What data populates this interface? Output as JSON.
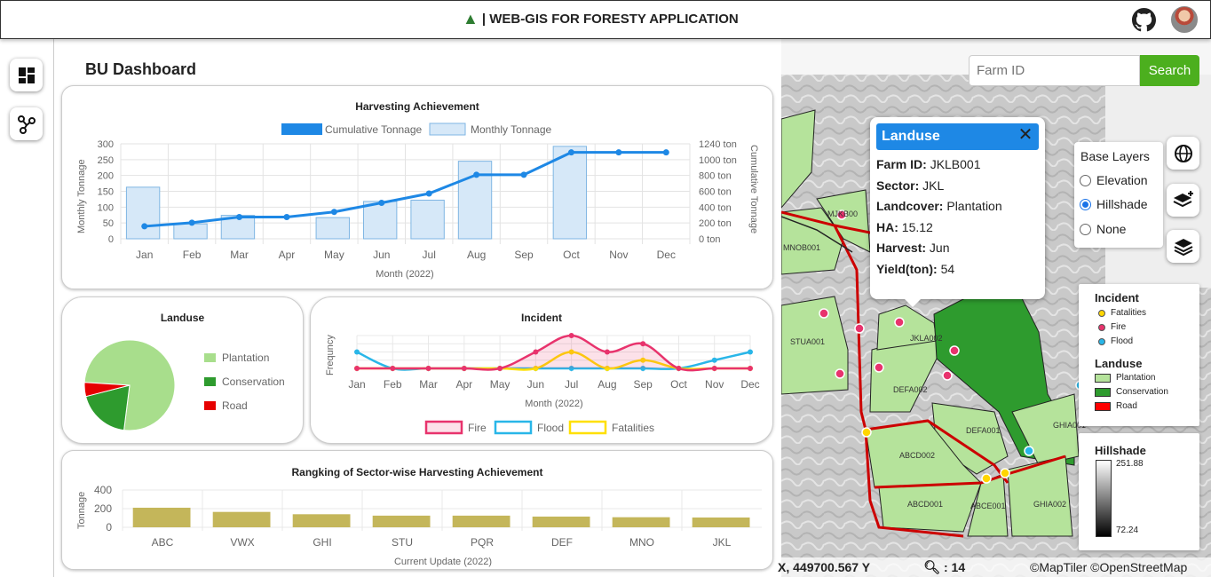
{
  "header": {
    "title": "| WEB-GIS FOR FORESTY APPLICATION"
  },
  "dashboard": {
    "title": "BU Dashboard",
    "harvest": {
      "title": "Harvesting Achievement",
      "legend": [
        "Cumulative Tonnage",
        "Monthly Tonnage"
      ],
      "ylabel_left": "Monthly Tonnage",
      "ylabel_right": "Cumulative Tonnage",
      "xlabel": "Month (2022)"
    },
    "landuse": {
      "title": "Landuse",
      "legend": [
        "Plantation",
        "Conservation",
        "Road"
      ]
    },
    "incident": {
      "title": "Incident",
      "ylabel": "Frequncy",
      "xlabel": "Month (2022)",
      "legend": [
        "Fire",
        "Flood",
        "Fatalities"
      ]
    },
    "ranking": {
      "title": "Rangking of Sector-wise Harvesting Achievement",
      "ylabel": "Tonnage",
      "xlabel": "Current Update (2022)"
    }
  },
  "chart_data": [
    {
      "type": "bar",
      "title": "Harvesting Achievement",
      "categories": [
        "Jan",
        "Feb",
        "Mar",
        "Apr",
        "May",
        "Jun",
        "Jul",
        "Aug",
        "Sep",
        "Oct",
        "Nov",
        "Dec"
      ],
      "series": [
        {
          "name": "Monthly Tonnage",
          "type": "bar",
          "axis": "left",
          "values": [
            163,
            47,
            74,
            0,
            67,
            118,
            122,
            245,
            0,
            292,
            0,
            0
          ]
        },
        {
          "name": "Cumulative Tonnage",
          "type": "line",
          "axis": "right",
          "values": [
            163,
            210,
            284,
            284,
            351,
            469,
            591,
            836,
            836,
            1128,
            1128,
            1128
          ]
        }
      ],
      "xlabel": "Month (2022)",
      "ylabel": "Monthly Tonnage",
      "ylabel_right": "Cumulative Tonnage",
      "ylim": [
        0,
        300
      ],
      "ylim_right": [
        0,
        1240
      ],
      "yticks_left": [
        "0",
        "50",
        "100",
        "150",
        "200",
        "250",
        "300"
      ],
      "yticks_right": [
        "0 ton",
        "200 ton",
        "400 ton",
        "600 ton",
        "800 ton",
        "1000 ton",
        "1240 ton"
      ],
      "colors": {
        "bar_fill": "#d6e8f8",
        "bar_stroke": "#7fb6e3",
        "line": "#1e88e5"
      },
      "grid": true,
      "legend_position": "top"
    },
    {
      "type": "pie",
      "title": "Landuse",
      "categories": [
        "Plantation",
        "Conservation",
        "Road"
      ],
      "values": [
        76,
        19,
        5
      ],
      "colors": [
        "#a8de8c",
        "#2e9b2e",
        "#e60000"
      ],
      "legend_position": "right"
    },
    {
      "type": "line",
      "title": "Incident",
      "categories": [
        "Jan",
        "Feb",
        "Mar",
        "Apr",
        "May",
        "Jun",
        "Jul",
        "Aug",
        "Sep",
        "Oct",
        "Nov",
        "Dec"
      ],
      "series": [
        {
          "name": "Fire",
          "values": [
            0,
            0,
            0,
            0,
            0,
            2,
            4,
            2,
            3,
            0,
            0,
            0
          ],
          "color": "#e8336d"
        },
        {
          "name": "Flood",
          "values": [
            2,
            0,
            0,
            0,
            0,
            0,
            0,
            0,
            0,
            0,
            1,
            2
          ],
          "color": "#29b6e8"
        },
        {
          "name": "Fatalities",
          "values": [
            0,
            0,
            0,
            0,
            0,
            0,
            2,
            0,
            1,
            0,
            0,
            0
          ],
          "color": "#ffe000"
        }
      ],
      "xlabel": "Month (2022)",
      "ylabel": "Frequncy",
      "ylim": [
        0,
        4
      ],
      "grid": true,
      "legend_position": "bottom"
    },
    {
      "type": "bar",
      "title": "Rangking of Sector-wise Harvesting Achievement",
      "categories": [
        "ABC",
        "VWX",
        "GHI",
        "STU",
        "PQR",
        "DEF",
        "MNO",
        "JKL"
      ],
      "values": [
        210,
        165,
        140,
        125,
        125,
        115,
        108,
        105
      ],
      "xlabel": "Current Update (2022)",
      "ylabel": "Tonnage",
      "ylim": [
        0,
        400
      ],
      "yticks": [
        "0",
        "200",
        "400"
      ],
      "colors": {
        "bar": "#c4b65a"
      },
      "grid": true
    }
  ],
  "search": {
    "placeholder": "Farm ID",
    "button": "Search"
  },
  "popup": {
    "title": "Landuse",
    "close": "✕",
    "rows": [
      {
        "label": "Farm ID:",
        "value": "JKLB001"
      },
      {
        "label": "Sector:",
        "value": "JKL"
      },
      {
        "label": "Landcover:",
        "value": "Plantation"
      },
      {
        "label": "HA:",
        "value": "15.12"
      },
      {
        "label": "Harvest:",
        "value": "Jun"
      },
      {
        "label": "Yield(ton):",
        "value": "54"
      }
    ]
  },
  "base_layers": {
    "title": "Base Layers",
    "options": [
      "Elevation",
      "Hillshade",
      "None"
    ],
    "selected": "Hillshade"
  },
  "map_legend": {
    "incident_title": "Incident",
    "incidents": [
      {
        "label": "Fatalities",
        "color": "#ffd600"
      },
      {
        "label": "Fire",
        "color": "#e8336d"
      },
      {
        "label": "Flood",
        "color": "#29b6e8"
      }
    ],
    "landuse_title": "Landuse",
    "landuse": [
      {
        "label": "Plantation",
        "color": "#b5e39b"
      },
      {
        "label": "Conservation",
        "color": "#2e9b2e"
      },
      {
        "label": "Road",
        "color": "#ff0000"
      }
    ]
  },
  "hillshade": {
    "title": "Hillshade",
    "max": "251.88",
    "min": "72.24"
  },
  "map_labels": [
    "MJKB00",
    "MNOB001",
    "STUA001",
    "JKLA002",
    "DEFA002",
    "DEFA001",
    "GHIA001",
    "ABCD002",
    "ABCD001",
    "ABCE001",
    "GHIA002"
  ],
  "status": {
    "coords": "X, 449700.567 Y",
    "zoom": ": 14",
    "attribution": "©MapTiler ©OpenStreetMap"
  }
}
